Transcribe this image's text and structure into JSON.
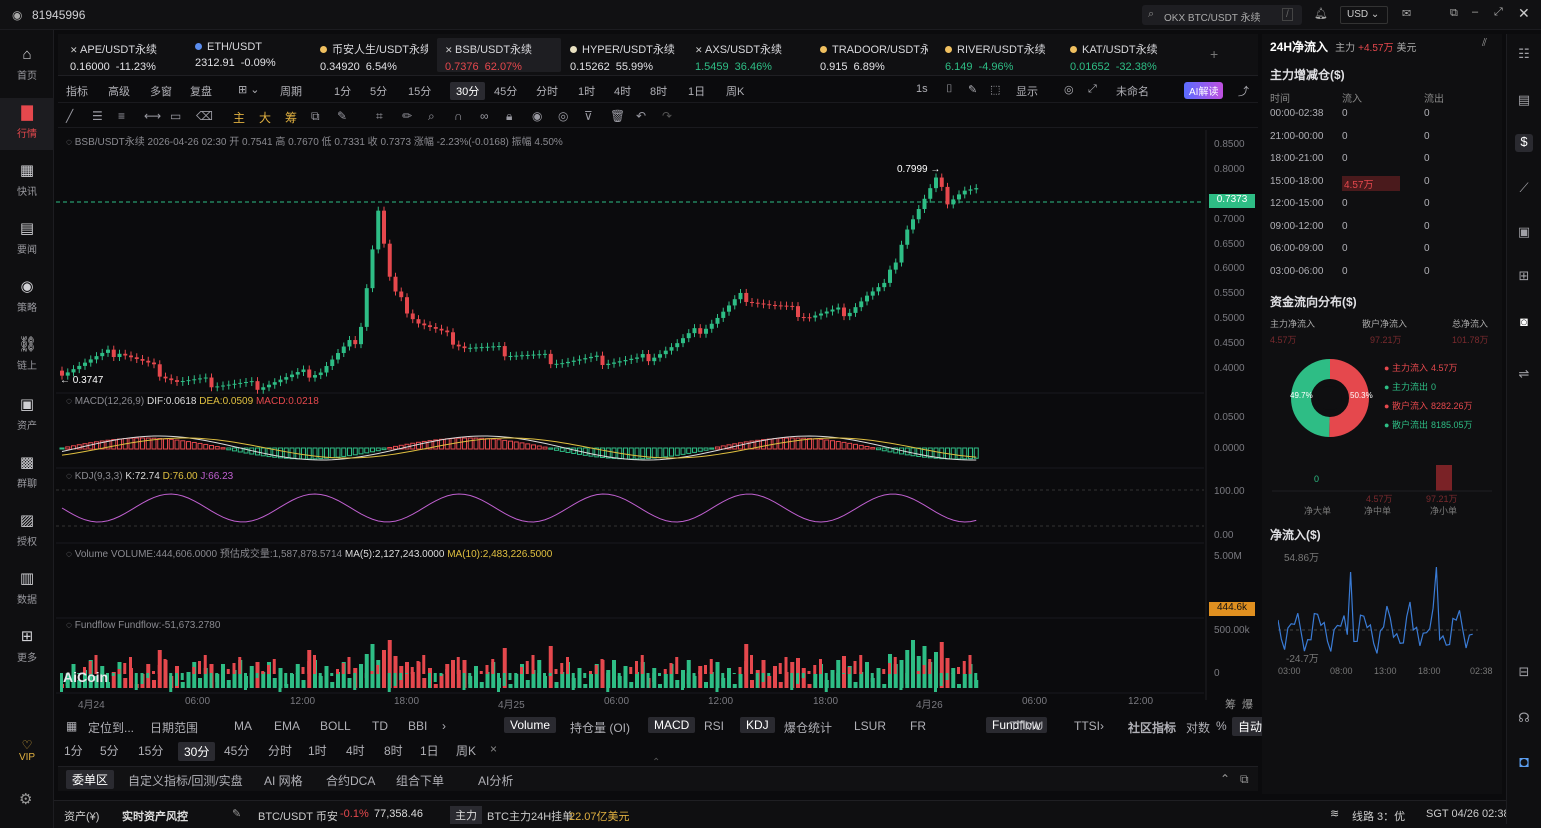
{
  "titlebar": {
    "account": "81945996",
    "search": "OKX BTC/USDT 永续",
    "search_key": "/",
    "currency": "USD"
  },
  "nav": [
    {
      "label": "首页",
      "icon": "home-icon"
    },
    {
      "label": "行情",
      "icon": "chart-icon",
      "active": true
    },
    {
      "label": "快讯",
      "icon": "news-icon"
    },
    {
      "label": "要闻",
      "icon": "doc-icon"
    },
    {
      "label": "策略",
      "icon": "robot-icon"
    },
    {
      "label": "链上",
      "icon": "chain-icon"
    },
    {
      "label": "资产",
      "icon": "wallet-icon"
    },
    {
      "label": "群聊",
      "icon": "chat-icon"
    },
    {
      "label": "授权",
      "icon": "auth-icon"
    },
    {
      "label": "数据",
      "icon": "data-icon"
    },
    {
      "label": "更多",
      "icon": "more-icon"
    }
  ],
  "vip": "VIP",
  "tabs": [
    {
      "name": "APE/USDT永续",
      "price": "0.16000",
      "change": "-11.23%",
      "dir": "wh",
      "dot": "x"
    },
    {
      "name": "ETH/USDT",
      "price": "2312.91",
      "change": "-0.09%",
      "dir": "wh",
      "dot": "#5b8def"
    },
    {
      "name": "币安人生/USDT永续",
      "price": "0.34920",
      "change": "6.54%",
      "dir": "wh",
      "dot": "#f0c060"
    },
    {
      "name": "BSB/USDT永续",
      "price": "0.7376",
      "change": "62.07%",
      "dir": "dn",
      "dot": "x",
      "active": true
    },
    {
      "name": "HYPER/USDT永续",
      "price": "0.15262",
      "change": "55.99%",
      "dir": "wh",
      "dot": "#e8e0c0"
    },
    {
      "name": "AXS/USDT永续",
      "price": "1.5459",
      "change": "36.46%",
      "dir": "up",
      "dot": "x"
    },
    {
      "name": "TRADOOR/USDT永续",
      "price": "0.915",
      "change": "6.89%",
      "dir": "wh",
      "dot": "#f0c060"
    },
    {
      "name": "RIVER/USDT永续",
      "price": "6.149",
      "change": "-4.96%",
      "dir": "up",
      "dot": "#f0c060"
    },
    {
      "name": "KAT/USDT永续",
      "price": "0.01652",
      "change": "-32.38%",
      "dir": "up",
      "dot": "#f0c060"
    }
  ],
  "toolbar1": {
    "items": [
      "指标",
      "高级",
      "多窗",
      "复盘",
      "周期",
      "1分",
      "5分",
      "15分",
      "30分",
      "45分",
      "分时",
      "1时",
      "4时",
      "8时",
      "1日",
      "周K"
    ],
    "selected": "30分",
    "right": [
      "1s",
      "显示",
      "未命名",
      "AI解读"
    ]
  },
  "chart": {
    "info": "BSB/USDT永续  2026-04-26 02:30  开 0.7541  高 0.7670  低 0.7331  收 0.7373  涨幅 -2.23%(-0.0168)  振幅 4.50%",
    "high_label": "0.7999",
    "low_label": "0.3747",
    "last_price": "0.7373",
    "price_axis": [
      "0.8500",
      "0.8000",
      "0.7500",
      "0.7000",
      "0.6500",
      "0.6000",
      "0.5500",
      "0.5000",
      "0.4500",
      "0.4000"
    ],
    "macd_title": "MACD(12,26,9)",
    "macd_dif": "DIF:0.0618",
    "macd_dea": "DEA:0.0509",
    "macd_val": "MACD:0.0218",
    "macd_axis": [
      "0.0500",
      "0.0000"
    ],
    "kdj_title": "KDJ(9,3,3)",
    "kdj_k": "K:72.74",
    "kdj_d": "D:76.00",
    "kdj_j": "J:66.23",
    "kdj_axis": [
      "100.00",
      "0.00"
    ],
    "vol_title": "Volume  VOLUME:444,606.0000  预估成交量:1,587,878.5714",
    "vol_ma5": "MA(5):2,127,243.0000",
    "vol_ma10": "MA(10):2,483,226.5000",
    "vol_axis": [
      "5.00M"
    ],
    "vol_last": "444.6k",
    "ff_title": "Fundflow  Fundflow:-51,673.2780",
    "ff_axis": [
      "500.00k",
      "0"
    ],
    "xlabels": [
      "4月24",
      "06:00",
      "12:00",
      "18:00",
      "4月25",
      "06:00",
      "12:00",
      "18:00",
      "4月26",
      "06:00",
      "12:00"
    ],
    "logo": "AiCoin"
  },
  "indbar": {
    "left": [
      "定位到...",
      "日期范围"
    ],
    "items": [
      "MA",
      "EMA",
      "BOLL",
      "TD",
      "BBI",
      "Volume",
      "持仓量 (OI)",
      "MACD",
      "RSI",
      "KDJ",
      "爆仓统计",
      "LSUR",
      "FR",
      "Fundflow",
      "TTMU",
      "TTSI"
    ],
    "selected": [
      "Volume",
      "MACD",
      "KDJ",
      "Fundflow"
    ],
    "right": [
      "社区指标",
      "对数",
      "%",
      "自动"
    ]
  },
  "tfbar": [
    "1分",
    "5分",
    "15分",
    "30分",
    "45分",
    "分时",
    "1时",
    "4时",
    "8时",
    "1日",
    "周K"
  ],
  "tf_selected": "30分",
  "bottombar": [
    "委单区",
    "自定义指标/回测/实盘",
    "AI 网格",
    "合约DCA",
    "组合下单",
    "AI分析"
  ],
  "status": {
    "asset": "资产(¥)",
    "risk": "实时资产风控",
    "pair": "BTC/USDT 币安",
    "chg": "-0.1%",
    "price": "77,358.46",
    "tag": "主力",
    "hang": "BTC主力24H挂单",
    "hang_val": "22.07亿美元",
    "line": "线路 3：优",
    "time": "SGT 04/26 02:38:28"
  },
  "right": {
    "title": "24H净流入",
    "sub": "主力",
    "sub_val": "+4.57万",
    "sub_unit": "美元",
    "inc_title": "主力增减仓($)",
    "cols": [
      "时间",
      "流入",
      "流出"
    ],
    "rows": [
      [
        "00:00-02:38",
        "0",
        "0"
      ],
      [
        "21:00-00:00",
        "0",
        "0"
      ],
      [
        "18:00-21:00",
        "0",
        "0"
      ],
      [
        "15:00-18:00",
        "4.57万",
        "0"
      ],
      [
        "12:00-15:00",
        "0",
        "0"
      ],
      [
        "09:00-12:00",
        "0",
        "0"
      ],
      [
        "06:00-09:00",
        "0",
        "0"
      ],
      [
        "03:00-06:00",
        "0",
        "0"
      ]
    ],
    "dist_title": "资金流向分布($)",
    "dist_heads": [
      "主力净流入",
      "散户净流入",
      "总净流入"
    ],
    "dist_vals": [
      "4.57万",
      "97.21万",
      "101.78万"
    ],
    "pie_left": "49.7%",
    "pie_right": "50.3%",
    "legend": [
      [
        "主力流入",
        "4.57万",
        "#e5484d"
      ],
      [
        "主力流出",
        "0",
        "#2ebd85"
      ],
      [
        "散户流入",
        "8282.26万",
        "#e5484d"
      ],
      [
        "散户流出",
        "8185.05万",
        "#2ebd85"
      ]
    ],
    "bar_vals": [
      "0",
      "4.57万",
      "97.21万"
    ],
    "bar_labels": [
      "净大单",
      "净中单",
      "净小单"
    ],
    "net_title": "净流入($)",
    "net_top": "54.86万",
    "net_bottom": "-24.7万",
    "net_x": [
      "03:00",
      "08:00",
      "13:00",
      "18:00",
      "02:38"
    ]
  }
}
